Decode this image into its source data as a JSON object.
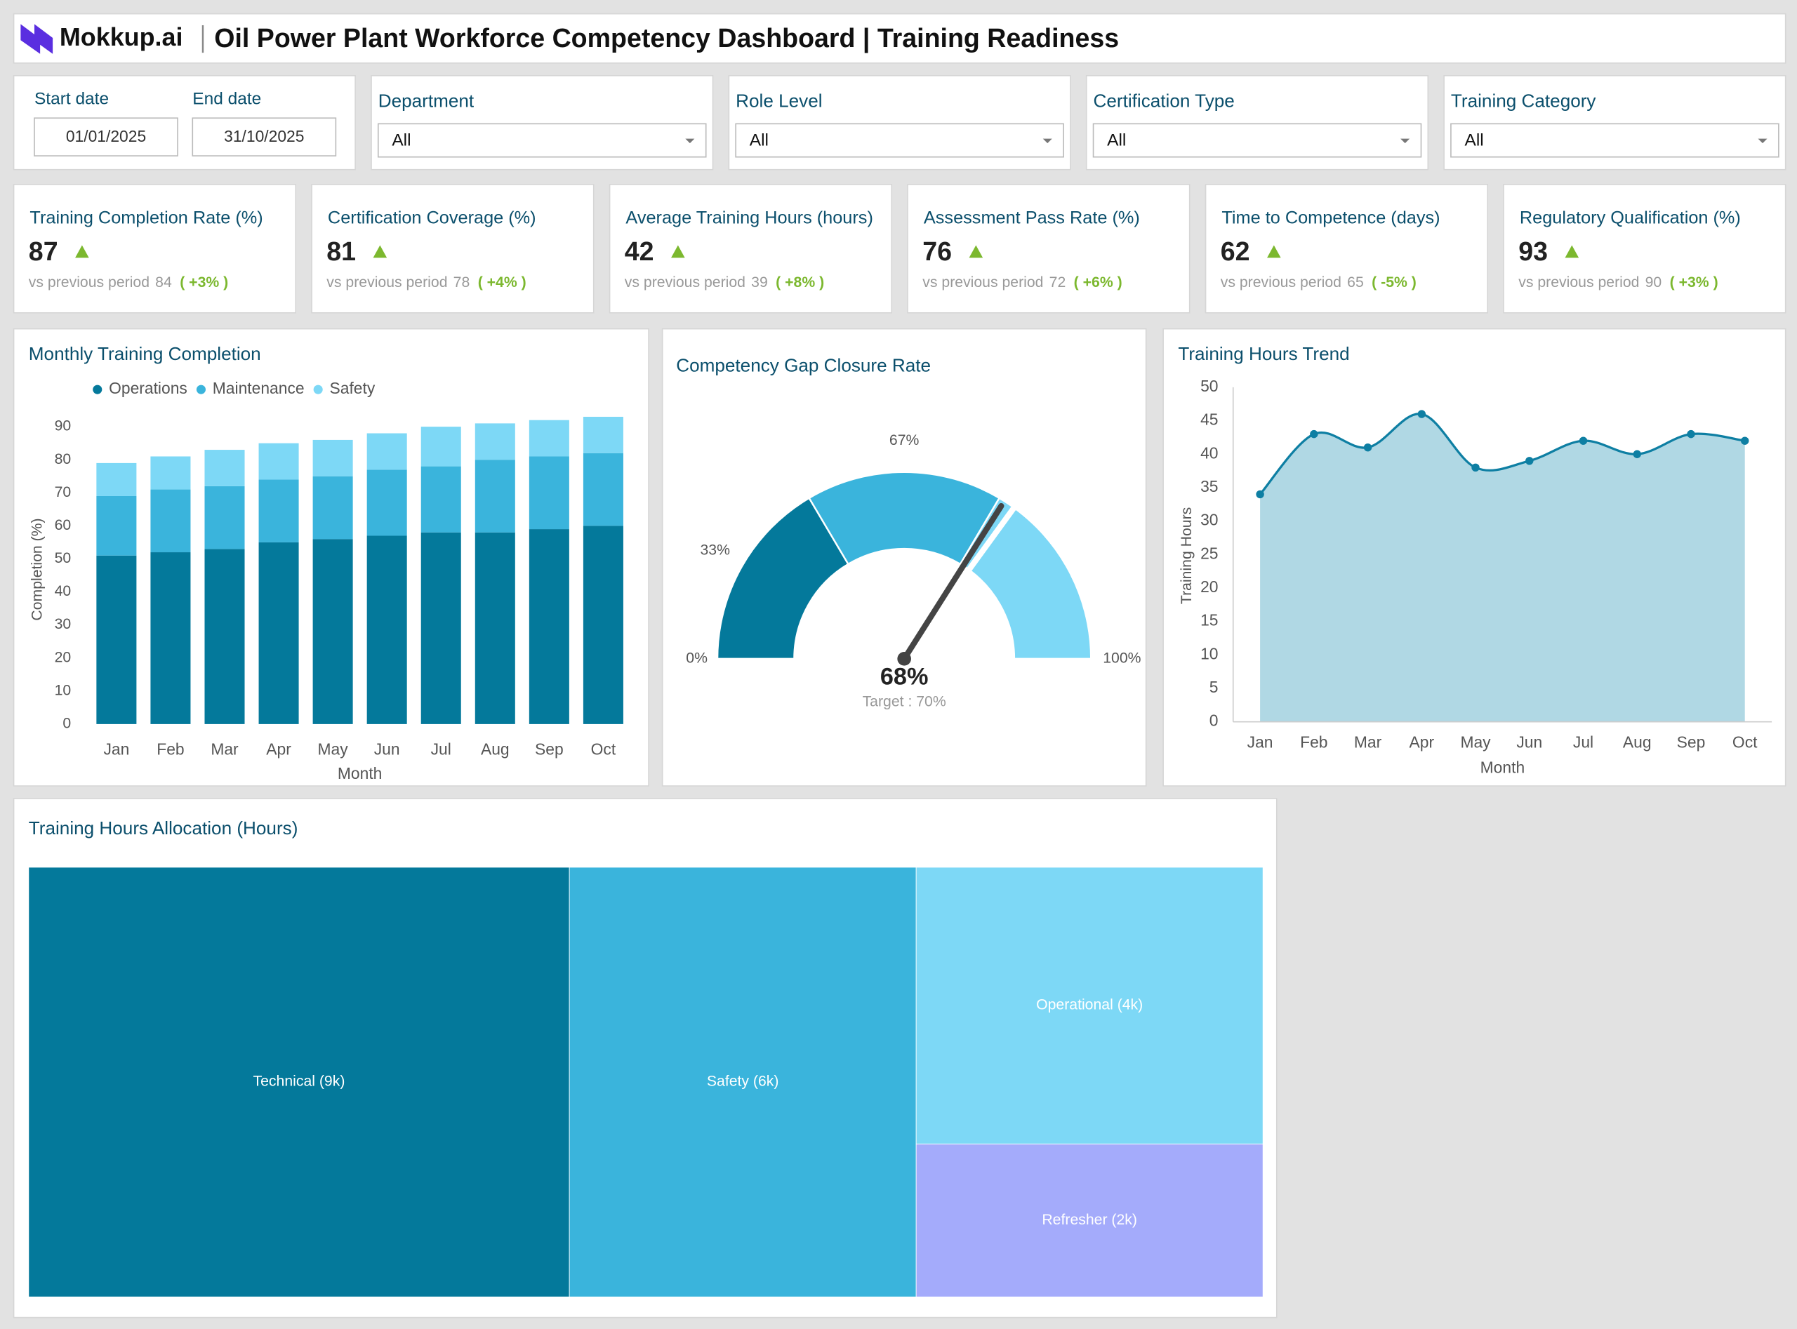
{
  "header": {
    "brand": "Mokkup.ai",
    "title": "Oil Power Plant Workforce Competency Dashboard | Training Readiness"
  },
  "filters": {
    "start_label": "Start date",
    "start": "01/01/2025",
    "end_label": "End date",
    "end": "31/10/2025",
    "dropdowns": [
      {
        "label": "Department",
        "value": "All"
      },
      {
        "label": "Role Level",
        "value": "All"
      },
      {
        "label": "Certification Type",
        "value": "All"
      },
      {
        "label": "Training Category",
        "value": "All"
      }
    ]
  },
  "kpis": [
    {
      "title": "Training Completion Rate (%)",
      "value": 87,
      "previous_label": "vs previous period",
      "previous": 84,
      "change": "( +3% )"
    },
    {
      "title": "Certification Coverage (%)",
      "value": 81,
      "previous_label": "vs previous period",
      "previous": 78,
      "change": "( +4% )"
    },
    {
      "title": "Average Training Hours (hours)",
      "value": 42,
      "previous_label": "vs previous period",
      "previous": 39,
      "change": "( +8% )"
    },
    {
      "title": "Assessment Pass Rate (%)",
      "value": 76,
      "previous_label": "vs previous period",
      "previous": 72,
      "change": "( +6% )"
    },
    {
      "title": "Time to Competence (days)",
      "value": 62,
      "previous_label": "vs previous period",
      "previous": 65,
      "change": "( -5% )"
    },
    {
      "title": "Regulatory Qualification (%)",
      "value": 93,
      "previous_label": "vs previous period",
      "previous": 90,
      "change": "( +3% )"
    }
  ],
  "chart_data": [
    {
      "type": "bar",
      "stacked": true,
      "title": "Monthly Training Completion",
      "categories": [
        "Jan",
        "Feb",
        "Mar",
        "Apr",
        "May",
        "Jun",
        "Jul",
        "Aug",
        "Sep",
        "Oct"
      ],
      "series": [
        {
          "name": "Operations",
          "color": "#04799b",
          "values": [
            51,
            52,
            53,
            55,
            56,
            57,
            58,
            58,
            59,
            60
          ]
        },
        {
          "name": "Maintenance",
          "color": "#3ab4dc",
          "values": [
            18,
            19,
            19,
            19,
            19,
            20,
            20,
            22,
            22,
            22
          ]
        },
        {
          "name": "Safety",
          "color": "#7dd8f6",
          "values": [
            10,
            10,
            11,
            11,
            11,
            11,
            12,
            11,
            11,
            11
          ]
        }
      ],
      "ylim": [
        0,
        95
      ],
      "yticks": [
        0,
        10,
        20,
        30,
        40,
        50,
        60,
        70,
        80,
        90
      ],
      "y_label": "Completion (%)",
      "x_label": "Month",
      "legend": "top-left",
      "grid": false
    },
    {
      "type": "gauge",
      "title": "Competency Gap Closure Rate",
      "value": 68,
      "value_label": "68%",
      "target": {
        "value": 70,
        "label": "Target : 70%"
      },
      "lim": [
        0,
        100
      ],
      "bands": [
        {
          "from": 0,
          "to": 33,
          "color": "#04799b"
        },
        {
          "from": 33,
          "to": 67,
          "color": "#3ab4dc"
        },
        {
          "from": 67,
          "to": 100,
          "color": "#7dd8f6"
        }
      ],
      "ticks": [
        {
          "value": 0,
          "label": "0%"
        },
        {
          "value": 33,
          "label": "33%"
        },
        {
          "value": 67,
          "label": "67%"
        },
        {
          "value": 100,
          "label": "100%"
        }
      ]
    },
    {
      "type": "area",
      "title": "Training Hours Trend",
      "categories": [
        "Jan",
        "Feb",
        "Mar",
        "Apr",
        "May",
        "Jun",
        "Jul",
        "Aug",
        "Sep",
        "Oct"
      ],
      "values": [
        34,
        43,
        41,
        46,
        38,
        39,
        42,
        40,
        43,
        42
      ],
      "color": "#0e7fa3",
      "fill": "#b0d8e4",
      "ylim": [
        0,
        50
      ],
      "yticks": [
        0,
        5,
        10,
        15,
        20,
        25,
        30,
        35,
        40,
        45,
        50
      ],
      "y_label": "Training Hours",
      "x_label": "Month",
      "grid": false
    },
    {
      "type": "treemap",
      "title": "Training Hours Allocation (Hours)",
      "values": [
        9200,
        5900,
        3800,
        2100
      ],
      "value_labels": [
        "Technical (9k)",
        "Safety (6k)",
        "Operational (4k)",
        "Refresher (2k)"
      ],
      "colors": [
        "#04799b",
        "#3ab4dc",
        "#7dd8f6",
        "#a4abfb"
      ]
    }
  ]
}
